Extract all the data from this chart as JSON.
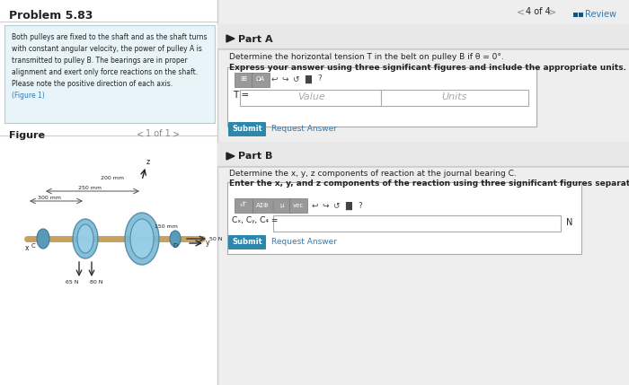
{
  "title": "Problem 5.83",
  "nav_right": "4 of 4",
  "review_text": "Review",
  "problem_text": "Both pulleys are fixed to the shaft and as the shaft turns\nwith constant angular velocity, the power of pulley A is\ntransmitted to pulley B. The bearings are in proper\nalignment and exert only force reactions on the shaft.\nPlease note the positive direction of each axis.\n(Figure 1)",
  "figure_label": "Figure",
  "figure_nav": "1 of 1",
  "part_a_label": "Part A",
  "part_a_desc": "Determine the horizontal tension T in the belt on pulley B if θ = 0°.",
  "part_a_bold": "Express your answer using three significant figures and include the appropriate units.",
  "t_label": "T =",
  "value_placeholder": "Value",
  "units_placeholder": "Units",
  "submit_text": "Submit",
  "request_answer_text": "Request Answer",
  "part_b_label": "Part B",
  "part_b_desc": "Determine the x, y, z components of reaction at the journal bearing C.",
  "part_b_bold": "Enter the x, y, and z components of the reaction using three significant figures separated by commas.",
  "n_unit": "N",
  "bg_color": "#f5f5f5",
  "left_panel_bg": "#ffffff",
  "right_panel_bg": "#eeeeee",
  "problem_box_bg": "#e8f4f8",
  "submit_btn_color": "#2e86ab",
  "divider_color": "#cccccc",
  "text_dark": "#222222",
  "text_light": "#888888",
  "link_color": "#2e7bb5",
  "toolbar_bg": "#888888",
  "shaft_color": "#c8a060",
  "pulley_color": "#7ab8d4",
  "bearing_color": "#5a9ab8"
}
